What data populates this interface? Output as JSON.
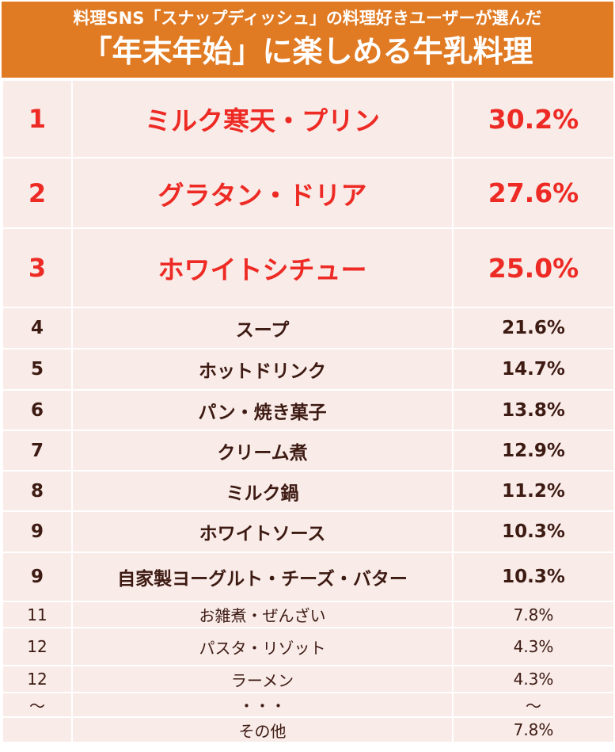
{
  "header": {
    "subtitle": "料理SNS「スナップディッシュ」の料理好きユーザーが選んだ",
    "title": "「年末年始」に楽しめる牛乳料理"
  },
  "colors": {
    "header_bg": "#e07b24",
    "row_bg": "#f8ebe8",
    "top3_text": "#ee2a24",
    "body_text": "#3d1a12"
  },
  "chart_data": {
    "type": "table",
    "columns": [
      "rank",
      "item",
      "percent"
    ],
    "rows": [
      {
        "rank": "1",
        "item": "ミルク寒天・プリン",
        "percent": "30.2%",
        "value": 30.2
      },
      {
        "rank": "2",
        "item": "グラタン・ドリア",
        "percent": "27.6%",
        "value": 27.6
      },
      {
        "rank": "3",
        "item": "ホワイトシチュー",
        "percent": "25.0%",
        "value": 25.0
      },
      {
        "rank": "4",
        "item": "スープ",
        "percent": "21.6%",
        "value": 21.6
      },
      {
        "rank": "5",
        "item": "ホットドリンク",
        "percent": "14.7%",
        "value": 14.7
      },
      {
        "rank": "6",
        "item": "パン・焼き菓子",
        "percent": "13.8%",
        "value": 13.8
      },
      {
        "rank": "7",
        "item": "クリーム煮",
        "percent": "12.9%",
        "value": 12.9
      },
      {
        "rank": "8",
        "item": "ミルク鍋",
        "percent": "11.2%",
        "value": 11.2
      },
      {
        "rank": "9",
        "item": "ホワイトソース",
        "percent": "10.3%",
        "value": 10.3
      },
      {
        "rank": "9",
        "item": "自家製ヨーグルト・チーズ・バター",
        "percent": "10.3%",
        "value": 10.3
      },
      {
        "rank": "11",
        "item": "お雑煮・ぜんざい",
        "percent": "7.8%",
        "value": 7.8
      },
      {
        "rank": "12",
        "item": "パスタ・リゾット",
        "percent": "4.3%",
        "value": 4.3
      },
      {
        "rank": "12",
        "item": "ラーメン",
        "percent": "4.3%",
        "value": 4.3
      },
      {
        "rank": "～",
        "item": "・・・",
        "percent": "～",
        "value": null
      },
      {
        "rank": "",
        "item": "その他",
        "percent": "7.8%",
        "value": 7.8
      }
    ]
  }
}
